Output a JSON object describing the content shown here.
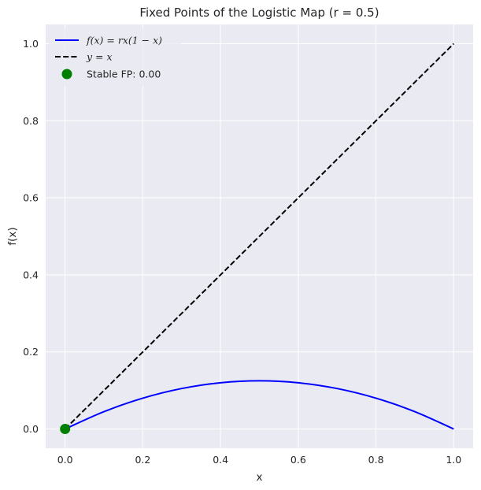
{
  "chart_data": {
    "type": "line",
    "title": "Fixed Points of the Logistic Map (r = 0.5)",
    "xlabel": "x",
    "ylabel": "f(x)",
    "xlim": [
      -0.05,
      1.05
    ],
    "ylim": [
      -0.05,
      1.05
    ],
    "xticks": [
      0.0,
      0.2,
      0.4,
      0.6,
      0.8,
      1.0
    ],
    "yticks": [
      0.0,
      0.2,
      0.4,
      0.6,
      0.8,
      1.0
    ],
    "xtick_labels": [
      "0.0",
      "0.2",
      "0.4",
      "0.6",
      "0.8",
      "1.0"
    ],
    "ytick_labels": [
      "0.0",
      "0.2",
      "0.4",
      "0.6",
      "0.8",
      "1.0"
    ],
    "grid": true,
    "legend_position": "top-left",
    "r": 0.5,
    "series": [
      {
        "name": "f(x) = rx(1 − x)",
        "style": "solid",
        "color": "#0000ff",
        "x": [
          0.0,
          0.1,
          0.2,
          0.3,
          0.4,
          0.5,
          0.6,
          0.7,
          0.8,
          0.9,
          1.0
        ],
        "y": [
          0.0,
          0.045,
          0.08,
          0.105,
          0.12,
          0.125,
          0.12,
          0.105,
          0.08,
          0.045,
          0.0
        ]
      },
      {
        "name": "y = x",
        "style": "dashed",
        "color": "#000000",
        "x": [
          0.0,
          1.0
        ],
        "y": [
          0.0,
          1.0
        ]
      },
      {
        "name": "Stable FP: 0.00",
        "style": "marker",
        "color": "#008000",
        "x": [
          0.0
        ],
        "y": [
          0.0
        ]
      }
    ]
  }
}
